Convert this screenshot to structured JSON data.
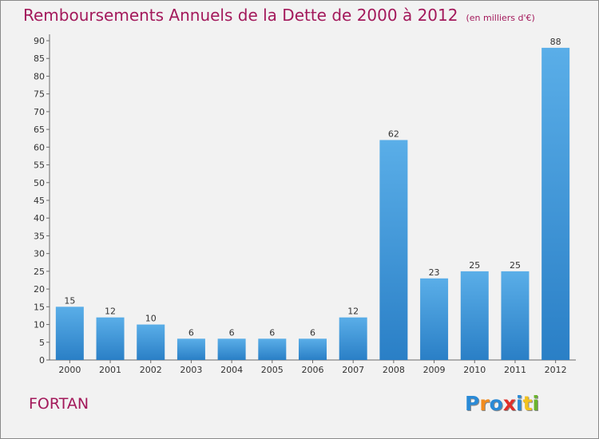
{
  "chart_data": {
    "type": "bar",
    "title": "Remboursements Annuels de la Dette de 2000 à 2012",
    "unit": "(en milliers d'€)",
    "categories": [
      "2000",
      "2001",
      "2002",
      "2003",
      "2004",
      "2005",
      "2006",
      "2007",
      "2008",
      "2009",
      "2010",
      "2011",
      "2012"
    ],
    "values": [
      15,
      12,
      10,
      6,
      6,
      6,
      6,
      12,
      62,
      23,
      25,
      25,
      88
    ],
    "yticks": [
      0,
      5,
      10,
      15,
      20,
      25,
      30,
      35,
      40,
      45,
      50,
      55,
      60,
      65,
      70,
      75,
      80,
      85,
      90
    ],
    "ylim": [
      0,
      90
    ],
    "xlabel": "",
    "ylabel": "",
    "grid": false,
    "bar_color_light": "#5aaee8",
    "bar_color_dark": "#2a7fc6"
  },
  "footer": {
    "commune": "FORTAN"
  },
  "brand": {
    "letters": [
      "P",
      "r",
      "o",
      "x",
      "i",
      "t",
      "i"
    ],
    "colors": [
      "#2a8ad6",
      "#f28c1e",
      "#2a8ad6",
      "#e0302a",
      "#2a8ad6",
      "#f2c21e",
      "#6ab42d"
    ]
  },
  "colors": {
    "accent": "#a3195b"
  }
}
